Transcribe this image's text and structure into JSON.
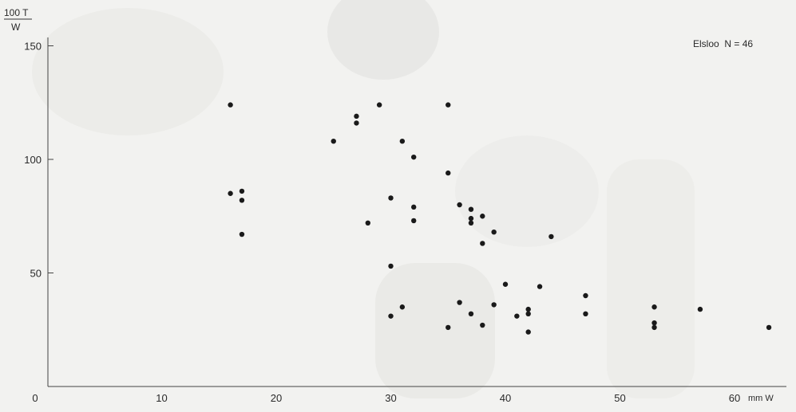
{
  "chart_data": {
    "type": "scatter",
    "title": "",
    "annotation": "Elsloo  N = 46",
    "ylabel_numerator": "100 T",
    "ylabel_denominator": "W",
    "xlabel": "mm W",
    "xlim": [
      0,
      65
    ],
    "ylim": [
      0,
      150
    ],
    "x_ticks": [
      0,
      10,
      20,
      30,
      40,
      50,
      60
    ],
    "x_tick_labels": [
      "0",
      "10",
      "20",
      "30",
      "40",
      "50",
      "60"
    ],
    "y_ticks": [
      50,
      100,
      150
    ],
    "y_tick_labels": [
      "50",
      "100",
      "150"
    ],
    "grid": false,
    "points": [
      {
        "x": 16,
        "y": 124
      },
      {
        "x": 16,
        "y": 85
      },
      {
        "x": 17,
        "y": 86
      },
      {
        "x": 17,
        "y": 82
      },
      {
        "x": 17,
        "y": 67
      },
      {
        "x": 25,
        "y": 108
      },
      {
        "x": 27,
        "y": 119
      },
      {
        "x": 27,
        "y": 116
      },
      {
        "x": 28,
        "y": 72
      },
      {
        "x": 29,
        "y": 124
      },
      {
        "x": 30,
        "y": 83
      },
      {
        "x": 30,
        "y": 53
      },
      {
        "x": 30,
        "y": 31
      },
      {
        "x": 31,
        "y": 108
      },
      {
        "x": 31,
        "y": 35
      },
      {
        "x": 32,
        "y": 101
      },
      {
        "x": 32,
        "y": 79
      },
      {
        "x": 32,
        "y": 73
      },
      {
        "x": 35,
        "y": 124
      },
      {
        "x": 35,
        "y": 94
      },
      {
        "x": 35,
        "y": 26
      },
      {
        "x": 36,
        "y": 80
      },
      {
        "x": 36,
        "y": 37
      },
      {
        "x": 37,
        "y": 78
      },
      {
        "x": 37,
        "y": 74
      },
      {
        "x": 37,
        "y": 72
      },
      {
        "x": 37,
        "y": 32
      },
      {
        "x": 38,
        "y": 75
      },
      {
        "x": 38,
        "y": 63
      },
      {
        "x": 38,
        "y": 27
      },
      {
        "x": 39,
        "y": 68
      },
      {
        "x": 39,
        "y": 36
      },
      {
        "x": 40,
        "y": 45
      },
      {
        "x": 41,
        "y": 31
      },
      {
        "x": 42,
        "y": 34
      },
      {
        "x": 42,
        "y": 32
      },
      {
        "x": 42,
        "y": 24
      },
      {
        "x": 43,
        "y": 44
      },
      {
        "x": 44,
        "y": 66
      },
      {
        "x": 47,
        "y": 40
      },
      {
        "x": 47,
        "y": 32
      },
      {
        "x": 53,
        "y": 35
      },
      {
        "x": 53,
        "y": 28
      },
      {
        "x": 53,
        "y": 26
      },
      {
        "x": 57,
        "y": 34
      },
      {
        "x": 63,
        "y": 26
      }
    ]
  }
}
